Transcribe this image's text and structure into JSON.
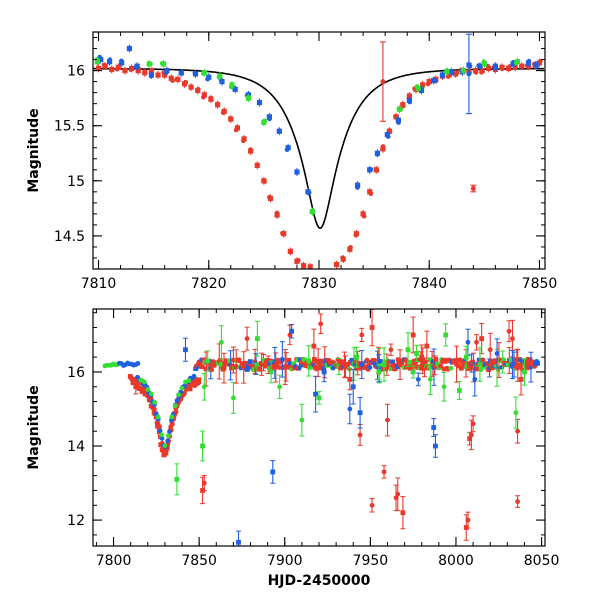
{
  "chart_data": [
    {
      "type": "scatter",
      "title": "",
      "xlabel": "",
      "ylabel": "Magnitude",
      "xlim": [
        7809.5,
        7850.5
      ],
      "ylim": [
        16.35,
        14.2
      ],
      "y_inverted": true,
      "x_ticks": [
        7810,
        7820,
        7830,
        7840,
        7850
      ],
      "y_ticks": [
        14.5,
        15,
        15.5,
        16
      ],
      "y_tick_labels": [
        "14.5",
        "15",
        "15.5",
        "16"
      ],
      "model_curve": {
        "name": "",
        "peak_x": 7830.1,
        "peak_mag": 14.57,
        "base_mag": 16.02,
        "tE_days": 3.9,
        "color": "#000000"
      },
      "series": [
        {
          "name": "",
          "color": "#e8392b",
          "points": [
            [
              7810.0,
              16.02
            ],
            [
              7810.6,
              16.04
            ],
            [
              7811.2,
              16.01
            ],
            [
              7811.8,
              16.03
            ],
            [
              7812.4,
              16.0
            ],
            [
              7813.0,
              16.02
            ],
            [
              7813.6,
              16.0
            ],
            [
              7814.2,
              15.98
            ],
            [
              7814.8,
              15.99
            ],
            [
              7815.4,
              15.96
            ],
            [
              7816.0,
              15.96
            ],
            [
              7816.6,
              15.93
            ],
            [
              7817.2,
              15.92
            ],
            [
              7817.8,
              15.88
            ],
            [
              7818.4,
              15.85
            ],
            [
              7819.0,
              15.82
            ],
            [
              7819.6,
              15.78
            ],
            [
              7820.2,
              15.74
            ],
            [
              7820.8,
              15.69
            ],
            [
              7821.4,
              15.63
            ],
            [
              7822.0,
              15.56
            ],
            [
              7822.6,
              15.48
            ],
            [
              7823.2,
              15.38
            ],
            [
              7823.8,
              15.27
            ],
            [
              7824.4,
              15.14
            ],
            [
              7825.0,
              15.0
            ],
            [
              7825.6,
              14.84
            ],
            [
              7826.2,
              14.69
            ],
            [
              7826.8,
              14.52
            ],
            [
              7827.4,
              14.36
            ],
            [
              7828.0,
              14.27
            ],
            [
              7828.6,
              14.23
            ],
            [
              7829.2,
              14.22
            ],
            [
              7831.6,
              14.24
            ],
            [
              7832.2,
              14.29
            ],
            [
              7832.8,
              14.38
            ],
            [
              7833.4,
              14.52
            ],
            [
              7834.0,
              14.7
            ],
            [
              7834.6,
              14.9
            ],
            [
              7835.2,
              15.1
            ],
            [
              7835.8,
              15.29
            ],
            [
              7836.4,
              15.45
            ],
            [
              7837.0,
              15.58
            ],
            [
              7837.6,
              15.69
            ],
            [
              7838.2,
              15.77
            ],
            [
              7838.8,
              15.83
            ],
            [
              7839.4,
              15.87
            ],
            [
              7840.0,
              15.9
            ],
            [
              7840.6,
              15.92
            ],
            [
              7841.2,
              15.95
            ],
            [
              7841.8,
              15.96
            ],
            [
              7842.4,
              15.97
            ],
            [
              7843.0,
              15.99
            ],
            [
              7843.6,
              15.99
            ],
            [
              7844.2,
              16.0
            ],
            [
              7844.8,
              16.0
            ],
            [
              7845.4,
              16.02
            ],
            [
              7846.0,
              16.01
            ],
            [
              7846.6,
              16.03
            ],
            [
              7847.2,
              16.02
            ],
            [
              7847.8,
              16.03
            ],
            [
              7848.4,
              16.04
            ],
            [
              7849.0,
              16.04
            ],
            [
              7849.6,
              16.05
            ],
            [
              7850.0,
              16.07
            ]
          ]
        },
        {
          "name": "",
          "color": "#1f5fe0",
          "points": [
            [
              7810.2,
              16.1
            ],
            [
              7811.0,
              16.08
            ],
            [
              7812.1,
              16.07
            ],
            [
              7812.8,
              16.2
            ],
            [
              7813.5,
              16.04
            ],
            [
              7814.8,
              15.96
            ],
            [
              7816.2,
              16.0
            ],
            [
              7817.5,
              15.98
            ],
            [
              7818.8,
              15.97
            ],
            [
              7820.0,
              15.94
            ],
            [
              7821.2,
              15.9
            ],
            [
              7822.4,
              15.83
            ],
            [
              7823.6,
              15.78
            ],
            [
              7824.6,
              15.71
            ],
            [
              7825.5,
              15.58
            ],
            [
              7826.4,
              15.45
            ],
            [
              7827.2,
              15.3
            ],
            [
              7828.0,
              15.08
            ],
            [
              7829.0,
              14.9
            ],
            [
              7833.5,
              14.96
            ],
            [
              7834.6,
              15.1
            ],
            [
              7835.3,
              15.25
            ],
            [
              7836.2,
              15.42
            ],
            [
              7837.2,
              15.55
            ],
            [
              7838.2,
              15.73
            ],
            [
              7839.3,
              15.82
            ],
            [
              7840.4,
              15.91
            ],
            [
              7841.2,
              15.96
            ],
            [
              7842.0,
              15.99
            ],
            [
              7843.0,
              15.99
            ],
            [
              7843.6,
              16.05
            ],
            [
              7844.6,
              16.04
            ],
            [
              7846.0,
              16.04
            ],
            [
              7847.6,
              16.06
            ],
            [
              7849.0,
              16.07
            ],
            [
              7849.7,
              16.05
            ]
          ]
        },
        {
          "name": "",
          "color": "#33dd33",
          "points": [
            [
              7809.9,
              16.08
            ],
            [
              7814.6,
              16.06
            ],
            [
              7815.9,
              16.06
            ],
            [
              7819.6,
              15.98
            ],
            [
              7821.0,
              15.95
            ],
            [
              7822.1,
              15.87
            ],
            [
              7823.6,
              15.75
            ],
            [
              7825.0,
              15.53
            ],
            [
              7829.4,
              14.72
            ],
            [
              7837.3,
              15.65
            ],
            [
              7839.0,
              15.84
            ],
            [
              7841.6,
              15.99
            ],
            [
              7843.1,
              16.0
            ],
            [
              7845.0,
              16.06
            ],
            [
              7848.0,
              16.08
            ]
          ]
        }
      ],
      "errorbar_points": [
        {
          "x": 7835.8,
          "y": 15.9,
          "err": 0.36,
          "color": "#e8392b"
        },
        {
          "x": 7843.6,
          "y": 15.97,
          "err": 0.36,
          "color": "#1f5fe0"
        },
        {
          "x": 7844.0,
          "y": 14.93,
          "err": 0.03,
          "color": "#e8392b"
        }
      ]
    },
    {
      "type": "scatter",
      "title": "",
      "xlabel": "HJD-2450000",
      "ylabel": "Magnitude",
      "xlim": [
        7788,
        8052
      ],
      "ylim": [
        17.7,
        11.3
      ],
      "y_inverted": true,
      "x_ticks": [
        7800,
        7850,
        7900,
        7950,
        8000,
        8050
      ],
      "y_ticks": [
        12,
        14,
        16
      ],
      "y_tick_labels": [
        "12",
        "14",
        "16"
      ],
      "baseline_mag": 16.2,
      "outliers": {
        "red": [
          [
            7813,
            15.6
          ],
          [
            7852,
            12.8
          ],
          [
            7853,
            13.0
          ],
          [
            7878,
            16.9
          ],
          [
            7903,
            17.0
          ],
          [
            7917,
            16.7
          ],
          [
            7921,
            17.3
          ],
          [
            7938,
            15.8
          ],
          [
            7944,
            14.3
          ],
          [
            7945,
            17.0
          ],
          [
            7951,
            12.4
          ],
          [
            7951,
            17.2
          ],
          [
            7958,
            13.3
          ],
          [
            7960,
            14.7
          ],
          [
            7962,
            16.6
          ],
          [
            7965,
            12.6
          ],
          [
            7966,
            12.7
          ],
          [
            7969,
            12.2
          ],
          [
            7975,
            17.0
          ],
          [
            7980,
            16.4
          ],
          [
            7983,
            16.7
          ],
          [
            8006,
            11.8
          ],
          [
            8007,
            12.0
          ],
          [
            8008,
            14.2
          ],
          [
            8009,
            14.3
          ],
          [
            8010,
            14.6
          ],
          [
            8012,
            16.8
          ],
          [
            8015,
            16.9
          ],
          [
            8020,
            16.6
          ],
          [
            8031,
            17.1
          ],
          [
            8033,
            16.9
          ],
          [
            8036,
            14.4
          ],
          [
            8036,
            12.5
          ],
          [
            8038,
            15.8
          ]
        ],
        "blue": [
          [
            7842,
            16.6
          ],
          [
            7873,
            11.4
          ],
          [
            7893,
            13.3
          ],
          [
            7904,
            17.1
          ],
          [
            7918,
            15.4
          ],
          [
            7923,
            16.0
          ],
          [
            7938,
            15.0
          ],
          [
            7940,
            15.6
          ],
          [
            7944,
            14.9
          ],
          [
            7945,
            16.2
          ],
          [
            7955,
            16.1
          ],
          [
            7978,
            15.8
          ],
          [
            7987,
            14.5
          ],
          [
            7988,
            14.0
          ],
          [
            8007,
            16.8
          ],
          [
            8011,
            15.8
          ],
          [
            8024,
            16.5
          ],
          [
            8033,
            16.2
          ]
        ],
        "green": [
          [
            7837,
            13.1
          ],
          [
            7852,
            14.0
          ],
          [
            7853,
            15.6
          ],
          [
            7855,
            16.3
          ],
          [
            7863,
            16.8
          ],
          [
            7870,
            15.3
          ],
          [
            7884,
            16.9
          ],
          [
            7892,
            16.0
          ],
          [
            7897,
            15.6
          ],
          [
            7910,
            14.7
          ],
          [
            7914,
            16.3
          ],
          [
            7920,
            15.3
          ],
          [
            7942,
            16.4
          ],
          [
            7955,
            16.0
          ],
          [
            7958,
            16.2
          ],
          [
            7972,
            16.6
          ],
          [
            7975,
            16.0
          ],
          [
            7977,
            16.5
          ],
          [
            7985,
            15.8
          ],
          [
            7993,
            15.6
          ],
          [
            7994,
            17.0
          ],
          [
            8002,
            15.5
          ],
          [
            8006,
            16.4
          ],
          [
            8014,
            16.2
          ],
          [
            8035,
            14.9
          ],
          [
            8040,
            16.0
          ]
        ]
      }
    }
  ]
}
